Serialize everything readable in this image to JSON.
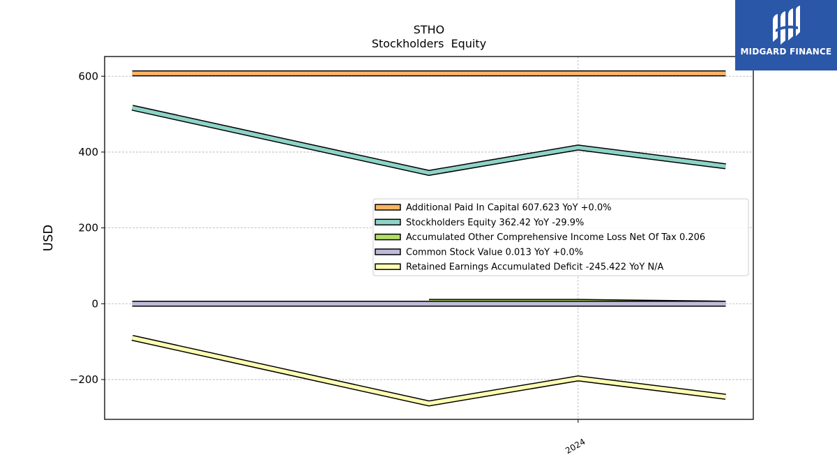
{
  "chart_data": {
    "type": "line",
    "title": "STHO",
    "subtitle": "Stockholders  Equity",
    "xlabel": "",
    "ylabel": "USD",
    "x": [
      "2023-03-31",
      "2023-09-30",
      "2023-12-31",
      "2024-03-31"
    ],
    "xticks": [
      {
        "label": "2024",
        "x": "2023-12-31"
      }
    ],
    "ylim": [
      -305,
      652
    ],
    "yticks": [
      -200,
      0,
      200,
      400,
      600
    ],
    "ytick_labels": [
      "−200",
      "0",
      "200",
      "400",
      "600"
    ],
    "grid": true,
    "legend_position": "center-right",
    "series": [
      {
        "name": "Additional Paid In Capital",
        "legend_label": "Additional Paid In Capital  607.623 YoY +0.0%",
        "color": "#fdb462",
        "values": [
          607.6,
          607.6,
          607.6,
          607.623
        ]
      },
      {
        "name": "Stockholders Equity",
        "legend_label": "Stockholders Equity  362.42 YoY -29.9%",
        "color": "#8dd3c7",
        "values": [
          517,
          345,
          412,
          362.42
        ]
      },
      {
        "name": "Accumulated Other Comprehensive Income Loss Net Of Tax",
        "legend_label": "Accumulated Other Comprehensive Income Loss Net Of Tax  0.206",
        "color": "#b3de69",
        "values": [
          null,
          5,
          5,
          0.206
        ]
      },
      {
        "name": "Common Stock Value",
        "legend_label": "Common Stock Value  0.013 YoY +0.0%",
        "color": "#bebada",
        "values": [
          0.013,
          0.013,
          0.013,
          0.013
        ]
      },
      {
        "name": "Retained Earnings Accumulated Deficit",
        "legend_label": "Retained Earnings Accumulated Deficit  -245.422 YoY N/A",
        "color": "#ffffb3",
        "values": [
          -90,
          -263,
          -197,
          -245.422
        ]
      }
    ]
  },
  "logo": {
    "text": "MIDGARD FINANCE",
    "background": "#2b57a8",
    "icon": "midgard-logo-icon"
  }
}
